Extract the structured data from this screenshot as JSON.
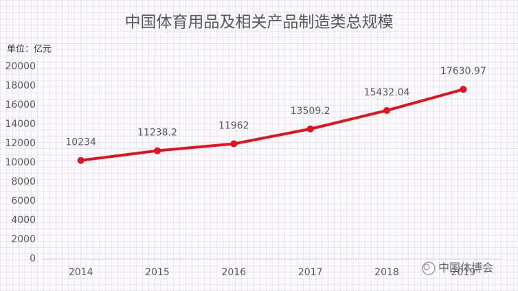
{
  "chart_data": {
    "type": "line",
    "title": "中国体育用品及相关产品制造类总规模",
    "y_label": "单位：亿元",
    "categories": [
      "2014",
      "2015",
      "2016",
      "2017",
      "2018",
      "2019"
    ],
    "series": [
      {
        "name": "总规模",
        "color": "#e3121c",
        "values": [
          10234,
          11238.2,
          11962,
          13509.2,
          15432.04,
          17630.97
        ]
      }
    ],
    "ylim": [
      0,
      20000
    ],
    "yticks": [
      0,
      2000,
      4000,
      6000,
      8000,
      10000,
      12000,
      14000,
      16000,
      18000,
      20000
    ],
    "grid": false,
    "legend": false
  },
  "watermark": "中国体博会"
}
